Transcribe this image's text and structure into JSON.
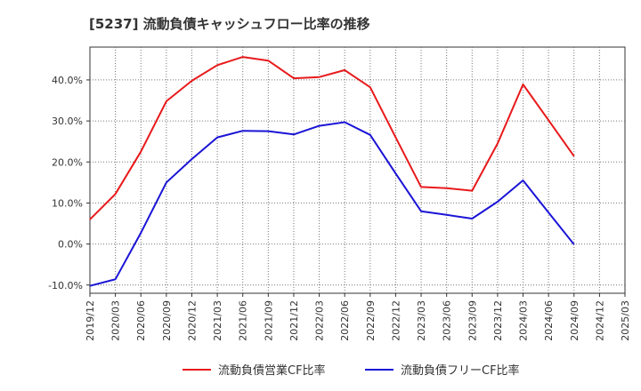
{
  "chart_data": {
    "type": "line",
    "title": "[5237]  流動負債キャッシュフロー比率の推移",
    "x": [
      "2019/12",
      "2020/03",
      "2020/06",
      "2020/09",
      "2020/12",
      "2021/03",
      "2021/06",
      "2021/09",
      "2021/12",
      "2022/03",
      "2022/06",
      "2022/09",
      "2022/12",
      "2023/03",
      "2023/06",
      "2023/09",
      "2023/12",
      "2024/03",
      "2024/06",
      "2024/09",
      "2024/12",
      "2025/03"
    ],
    "yticks": [
      "-10.0%",
      "0.0%",
      "10.0%",
      "20.0%",
      "30.0%",
      "40.0%"
    ],
    "ylim": [
      -12,
      48
    ],
    "series": [
      {
        "name": "流動負債営業CF比率",
        "color": "#e8191b",
        "values": [
          6.0,
          12.2,
          22.5,
          34.8,
          39.8,
          43.6,
          45.6,
          44.7,
          40.4,
          40.7,
          42.4,
          38.2,
          26.0,
          13.9,
          13.6,
          13.0,
          24.5,
          38.9,
          30.2,
          21.4,
          null,
          null
        ]
      },
      {
        "name": "流動負債フリーCF比率",
        "color": "#1a14d6",
        "values": [
          -10.2,
          -8.6,
          2.7,
          15.0,
          20.7,
          26.0,
          27.6,
          27.5,
          26.7,
          28.8,
          29.7,
          26.6,
          17.2,
          8.0,
          7.1,
          6.2,
          10.3,
          15.5,
          7.7,
          -0.1,
          null,
          null
        ]
      }
    ]
  }
}
